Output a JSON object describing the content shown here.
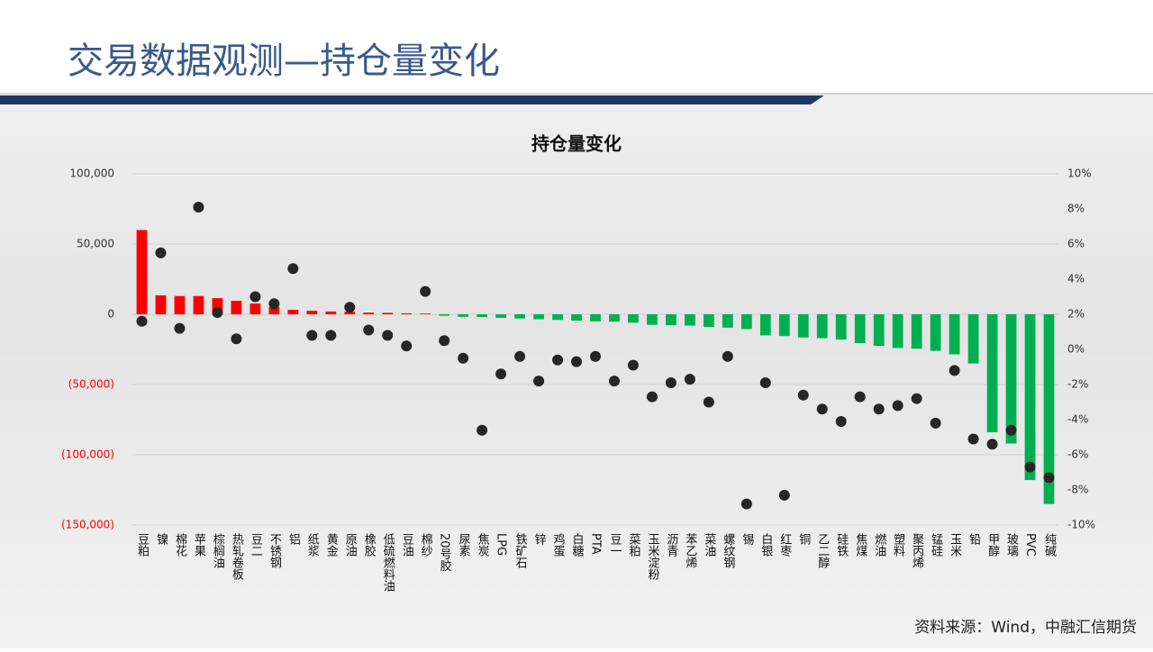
{
  "page_title": "交易数据观测—持仓量变化",
  "source": "资料来源：Wind，中融汇信期货",
  "chart_data": {
    "type": "bar",
    "title": "持仓量变化",
    "categories": [
      "豆粕",
      "镍",
      "棉花",
      "苹果",
      "棕榈油",
      "热轧卷板",
      "豆二",
      "不锈钢",
      "铝",
      "纸浆",
      "黄金",
      "原油",
      "橡胶",
      "低硫燃料油",
      "豆油",
      "棉纱",
      "20号胶",
      "尿素",
      "焦炭",
      "LPG",
      "铁矿石",
      "锌",
      "鸡蛋",
      "白糖",
      "PTA",
      "豆一",
      "菜粕",
      "玉米淀粉",
      "沥青",
      "苯乙烯",
      "菜油",
      "螺纹钢",
      "锡",
      "白银",
      "红枣",
      "铜",
      "乙二醇",
      "硅铁",
      "焦煤",
      "燃油",
      "塑料",
      "聚丙烯",
      "锰硅",
      "玉米",
      "铅",
      "甲醇",
      "玻璃",
      "PVC",
      "纯碱"
    ],
    "series": [
      {
        "type": "bar",
        "color": "#ff0000",
        "negative_color": "#00b050",
        "values": [
          60000,
          13500,
          13000,
          13000,
          11500,
          9600,
          7700,
          5100,
          3200,
          2500,
          2000,
          1800,
          1200,
          1000,
          700,
          500,
          -1000,
          -1800,
          -2000,
          -2500,
          -3000,
          -3500,
          -4000,
          -4500,
          -5000,
          -5200,
          -6000,
          -7500,
          -7800,
          -8000,
          -9000,
          -9500,
          -10500,
          -15000,
          -15500,
          -16500,
          -17000,
          -18000,
          -20500,
          -22500,
          -24000,
          -24500,
          -26000,
          -28500,
          -35000,
          -84000,
          -92000,
          -118000,
          -135000
        ]
      },
      {
        "type": "scatter",
        "axis": "y2",
        "color": "#262626",
        "values": [
          1.6,
          5.5,
          1.2,
          8.1,
          2.1,
          0.6,
          3.0,
          2.6,
          4.6,
          0.8,
          0.8,
          2.4,
          1.1,
          0.8,
          0.2,
          3.3,
          0.5,
          -0.5,
          -4.6,
          -1.4,
          -0.4,
          -1.8,
          -0.6,
          -0.7,
          -0.4,
          -1.8,
          -0.9,
          -2.7,
          -1.9,
          -1.7,
          -3.0,
          -0.4,
          -8.8,
          -1.9,
          -8.3,
          -2.6,
          -3.4,
          -4.1,
          -2.7,
          -3.4,
          -3.2,
          -2.8,
          -4.2,
          -1.2,
          -5.1,
          -5.4,
          -4.6,
          -6.7,
          -7.3
        ]
      }
    ],
    "ylim": [
      -150000,
      100000
    ],
    "yticks": [
      {
        "value": 100000,
        "label": "100,000"
      },
      {
        "value": 50000,
        "label": "50,000"
      },
      0,
      {
        "value": -50000,
        "label": "(50,000)"
      },
      {
        "value": -100000,
        "label": "(100,000)"
      },
      {
        "value": -150000,
        "label": "(150,000)"
      }
    ],
    "y_negative_tick_color": "#ff0000",
    "y2lim": [
      -10,
      10
    ],
    "y2ticks": [
      {
        "value": 10,
        "label": "10%"
      },
      {
        "value": 8,
        "label": "8%"
      },
      {
        "value": 6,
        "label": "6%"
      },
      {
        "value": 4,
        "label": "4%"
      },
      {
        "value": 2,
        "label": "2%"
      },
      {
        "value": 0,
        "label": "0%"
      },
      {
        "value": -2,
        "label": "-2%"
      },
      {
        "value": -4,
        "label": "-4%"
      },
      {
        "value": -6,
        "label": "-6%"
      },
      {
        "value": -8,
        "label": "-8%"
      },
      {
        "value": -10,
        "label": "-10%"
      }
    ],
    "grid": true
  }
}
